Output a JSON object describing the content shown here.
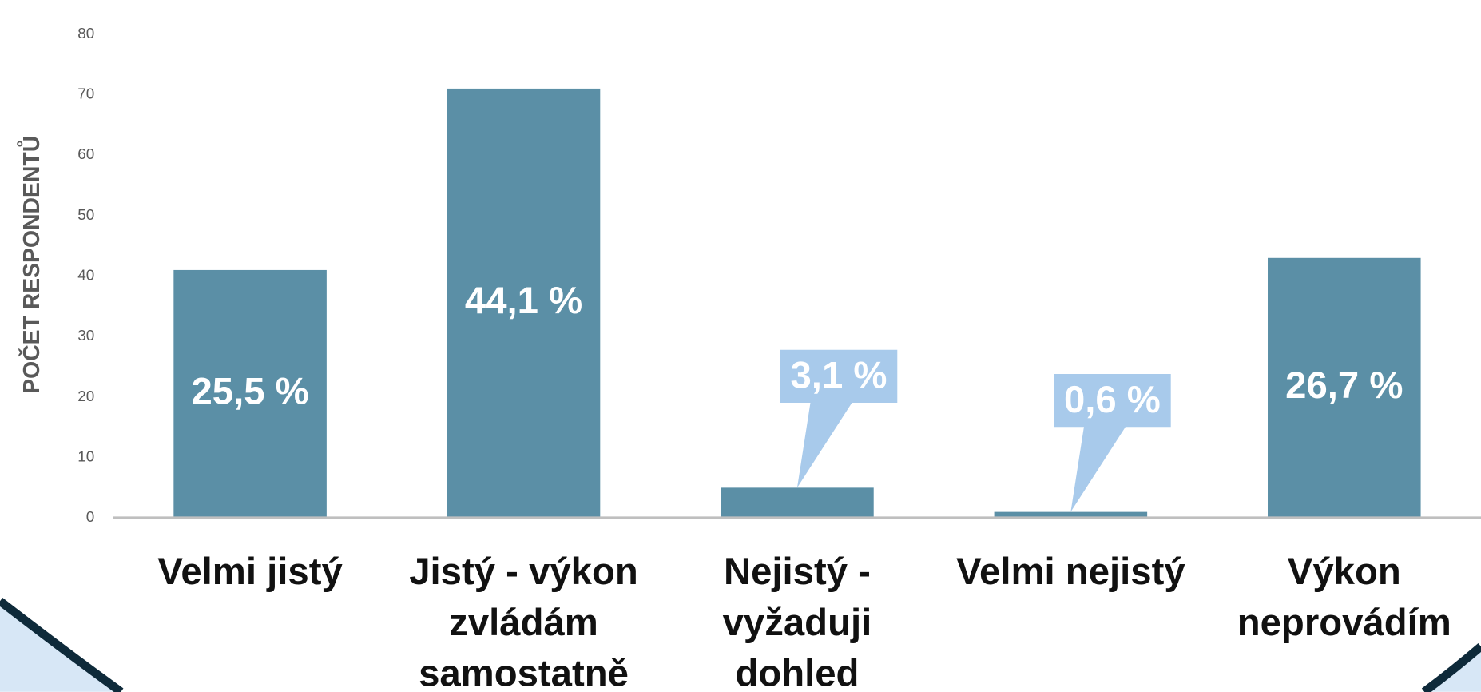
{
  "chart_data": {
    "type": "bar",
    "y_label": "POČET RESPONDENTŮ",
    "categories": [
      "Velmi jistý",
      "Jistý - výkon zvládám samostatně",
      "Nejistý - vyžaduji dohled",
      "Velmi nejistý",
      "Výkon neprovádím"
    ],
    "values": [
      41,
      71,
      5,
      1,
      43
    ],
    "data_labels": [
      "25,5 %",
      "44,1 %",
      "3,1 %",
      "0,6 %",
      "26,7 %"
    ],
    "color": "#5b8fa6",
    "ylim": [
      0,
      80
    ],
    "yticks": [
      0,
      10,
      20,
      30,
      40,
      50,
      60,
      70,
      80
    ],
    "grid": false
  }
}
